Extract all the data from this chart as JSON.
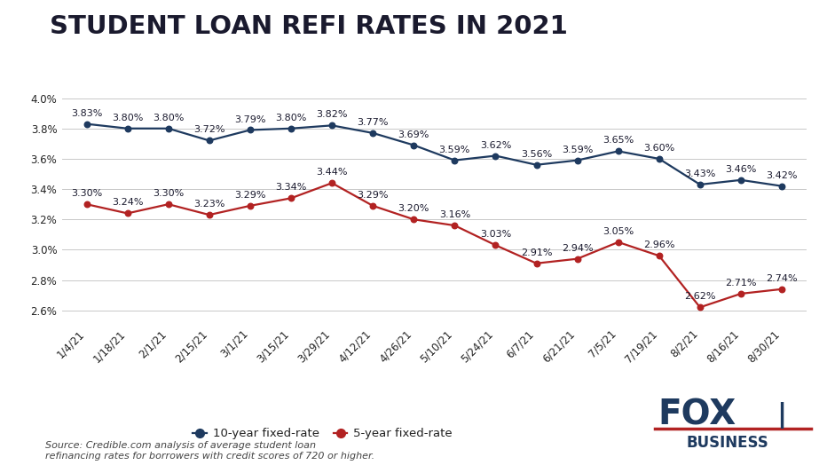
{
  "title": "STUDENT LOAN REFI RATES IN 2021",
  "x_labels": [
    "1/4/21",
    "1/18/21",
    "2/1/21",
    "2/15/21",
    "3/1/21",
    "3/15/21",
    "3/29/21",
    "4/12/21",
    "4/26/21",
    "5/10/21",
    "5/24/21",
    "6/7/21",
    "6/21/21",
    "7/5/21",
    "7/19/21",
    "8/2/21",
    "8/16/21",
    "8/30/21"
  ],
  "ten_year": [
    3.83,
    3.8,
    3.8,
    3.72,
    3.79,
    3.8,
    3.82,
    3.77,
    3.69,
    3.59,
    3.62,
    3.56,
    3.59,
    3.65,
    3.6,
    3.43,
    3.46,
    3.42
  ],
  "five_year": [
    3.3,
    3.24,
    3.3,
    3.23,
    3.29,
    3.34,
    3.44,
    3.29,
    3.2,
    3.16,
    3.03,
    2.91,
    2.94,
    3.05,
    2.96,
    2.62,
    2.71,
    2.74
  ],
  "ten_year_color": "#1e3a5f",
  "five_year_color": "#b22222",
  "label_color_ten": "#1a1a2e",
  "label_color_five": "#1a1a2e",
  "ylim_min": 2.5,
  "ylim_max": 4.08,
  "yticks": [
    2.6,
    2.8,
    3.0,
    3.2,
    3.4,
    3.6,
    3.8,
    4.0
  ],
  "source_text": "Source: Credible.com analysis of average student loan\nrefinancing rates for borrowers with credit scores of 720 or higher.",
  "legend_10yr": "10-year fixed-rate",
  "legend_5yr": "5-year fixed-rate",
  "background_color": "#ffffff",
  "grid_color": "#c8c8c8",
  "title_fontsize": 21,
  "label_fontsize": 8,
  "tick_fontsize": 8.5,
  "source_fontsize": 8,
  "ten_label_yoffset": [
    6,
    6,
    6,
    6,
    6,
    6,
    6,
    6,
    6,
    6,
    6,
    6,
    6,
    6,
    6,
    6,
    6,
    6
  ],
  "five_label_yoffset": [
    6,
    6,
    6,
    6,
    6,
    6,
    6,
    6,
    6,
    6,
    6,
    6,
    6,
    6,
    6,
    6,
    6,
    6
  ]
}
